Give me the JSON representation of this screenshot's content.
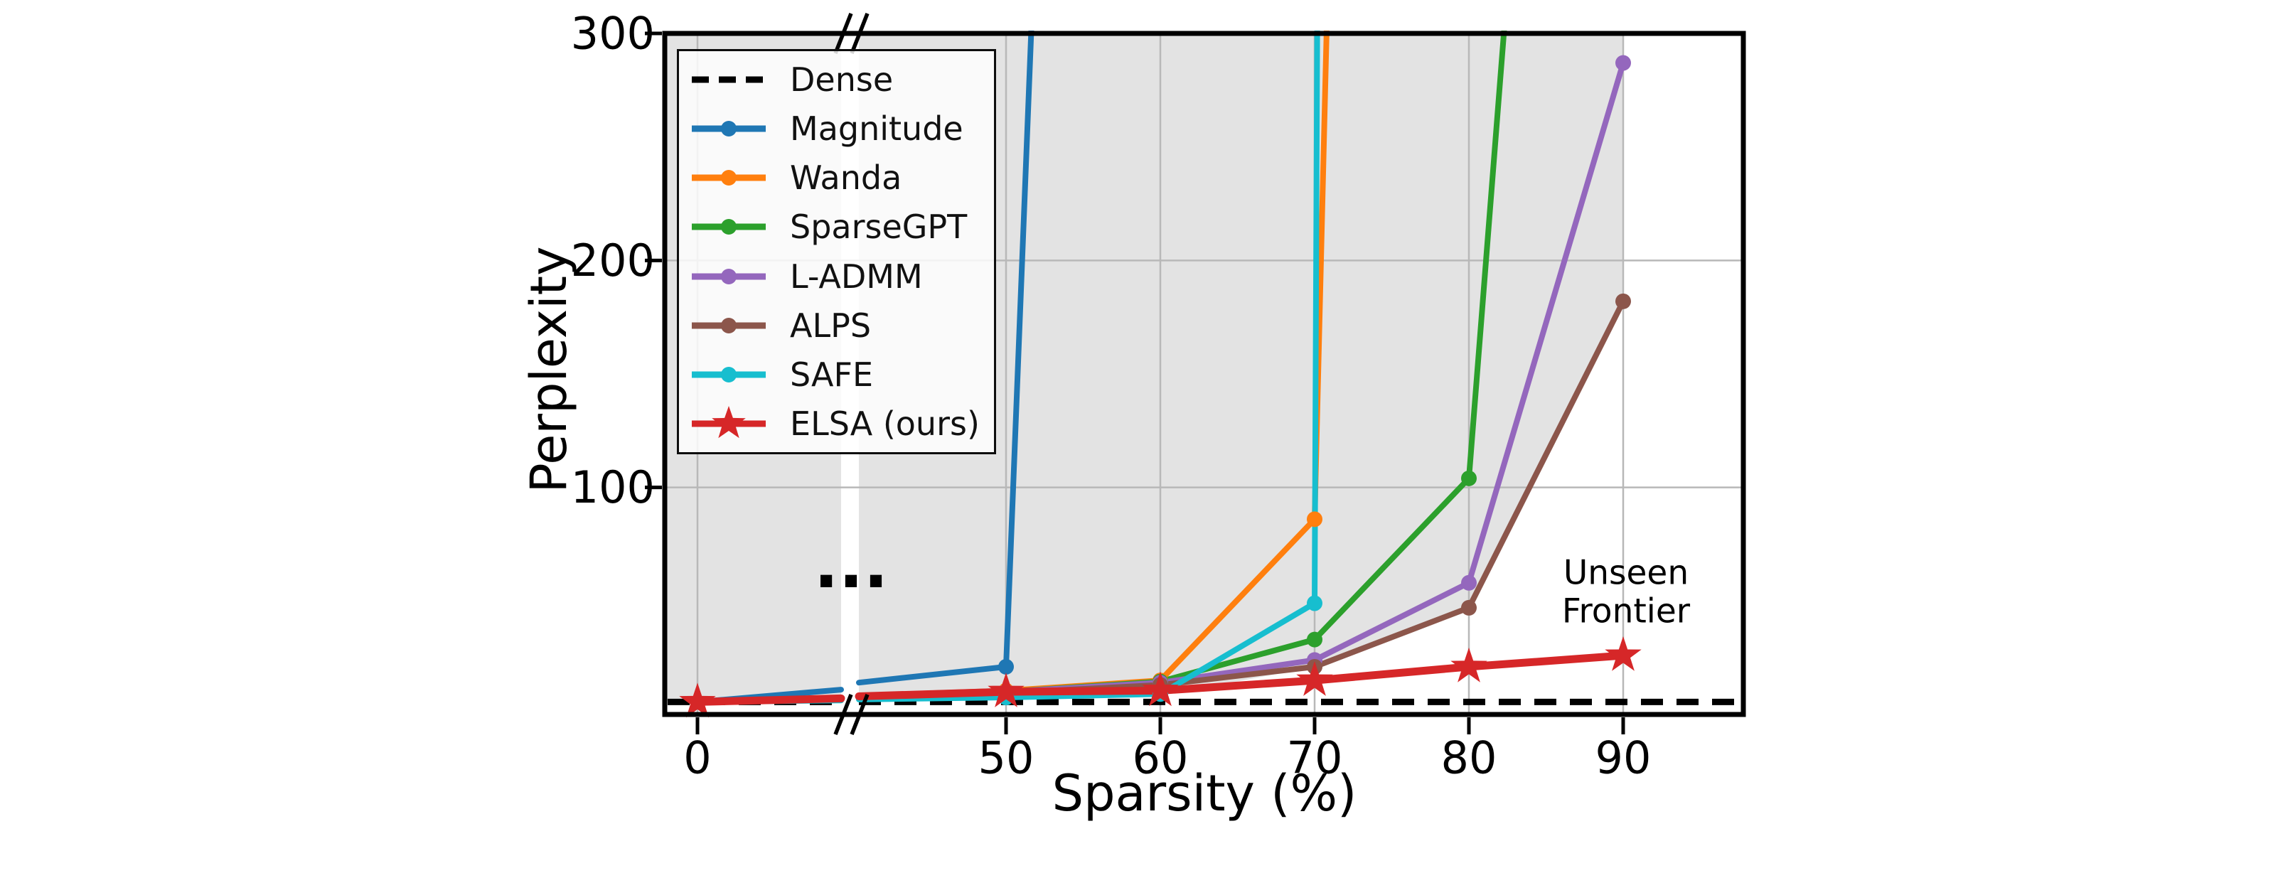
{
  "figure": {
    "background": "#ffffff",
    "plot_bg": "#ffffff",
    "shaded_region_color": "#e3e3e3",
    "grid_color": "#b8b8b8",
    "spine_color": "#000000"
  },
  "annotation": {
    "line1": "Unseen",
    "line2": "Frontier",
    "color": "#d62b2b"
  },
  "axes": {
    "xlabel": "Sparsity (%)",
    "ylabel": "Perplexity",
    "x_ticks": [
      0,
      50,
      60,
      70,
      80,
      90
    ],
    "y_ticks": [
      100,
      200,
      300
    ],
    "break_ellipsis": "···",
    "x_axis_break_between": [
      0,
      50
    ]
  },
  "chart_data": {
    "type": "line",
    "title": "",
    "xlabel": "Sparsity (%)",
    "ylabel": "Perplexity",
    "xlim_right_segment": [
      45,
      98
    ],
    "ylim": [
      0,
      300
    ],
    "grid": true,
    "legend_position": "upper left",
    "x_axis_break": "axis broken between 0% and 50% sparsity (marked with // and ···)",
    "dense_baseline": {
      "name": "Dense",
      "perplexity": 5.5,
      "color": "#000000",
      "style": "dashed"
    },
    "shaded_region": {
      "description": "gray region above baseline-method curves, bounded right at 90% sparsity",
      "color": "#e3e3e3",
      "lower_boundary_points": [
        [
          0,
          6
        ],
        [
          50,
          8
        ],
        [
          60,
          10
        ],
        [
          63,
          12
        ],
        [
          70,
          21
        ],
        [
          80,
          47
        ],
        [
          90,
          182
        ]
      ],
      "right_boundary_x": 90,
      "top": 300
    },
    "series": [
      {
        "name": "Magnitude",
        "color": "#1f77b4",
        "marker": "circle",
        "points": [
          [
            0,
            5.5
          ],
          [
            50,
            21
          ]
        ],
        "runoff": [
          52.5,
          450
        ],
        "note": "diverges above 300 just past 50% sparsity"
      },
      {
        "name": "Wanda",
        "color": "#ff7f0e",
        "marker": "circle",
        "points": [
          [
            0,
            5.5
          ],
          [
            50,
            10.5
          ],
          [
            60,
            15
          ],
          [
            70,
            86
          ]
        ],
        "runoff": [
          71.5,
          500
        ],
        "note": "diverges above 300 just past 70% sparsity"
      },
      {
        "name": "SparseGPT",
        "color": "#2ca02c",
        "marker": "circle",
        "points": [
          [
            0,
            5.5
          ],
          [
            50,
            10
          ],
          [
            60,
            14.5
          ],
          [
            70,
            33
          ],
          [
            80,
            104
          ]
        ],
        "runoff": [
          84,
          450
        ],
        "note": "diverges above 300 near 82% sparsity"
      },
      {
        "name": "L-ADMM",
        "color": "#9467bd",
        "marker": "circle",
        "points": [
          [
            0,
            5.5
          ],
          [
            50,
            10
          ],
          [
            60,
            14
          ],
          [
            70,
            24
          ],
          [
            80,
            58
          ],
          [
            90,
            287
          ]
        ]
      },
      {
        "name": "ALPS",
        "color": "#8c564b",
        "marker": "circle",
        "points": [
          [
            0,
            5.5
          ],
          [
            50,
            9.5
          ],
          [
            60,
            13
          ],
          [
            70,
            21
          ],
          [
            80,
            47
          ],
          [
            90,
            182
          ]
        ]
      },
      {
        "name": "SAFE",
        "color": "#17becf",
        "marker": "circle",
        "points": [
          [
            0,
            5.5
          ],
          [
            50,
            7.5
          ],
          [
            60,
            9
          ],
          [
            70,
            49
          ]
        ],
        "runoff": [
          70.3,
          500
        ],
        "note": "diverges above 300 at ~70% sparsity"
      },
      {
        "name": "ELSA (ours)",
        "color": "#d62728",
        "marker": "star",
        "linewidth": 11,
        "points": [
          [
            0,
            5.5
          ],
          [
            50,
            10
          ],
          [
            60,
            10.5
          ],
          [
            70,
            15
          ],
          [
            80,
            21
          ],
          [
            90,
            26
          ]
        ]
      }
    ]
  }
}
